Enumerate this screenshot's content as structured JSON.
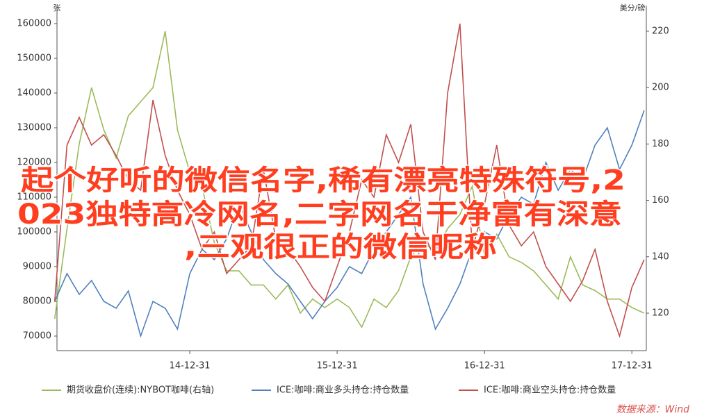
{
  "chart_data": {
    "type": "line",
    "title": [
      "起个好听的微信名字,稀有漂亮特殊符号,2",
      "023独特高冷网名,二字网名干净富有深意",
      ",三观很正的微信昵称"
    ],
    "source": "数据来源：Wind",
    "ylabel": "张",
    "y2label": "美分/磅",
    "x": [
      "14-01-31",
      "14-02-28",
      "14-03-31",
      "14-04-30",
      "14-05-31",
      "14-06-30",
      "14-07-31",
      "14-08-31",
      "14-09-30",
      "14-10-31",
      "14-11-30",
      "14-12-31",
      "15-01-31",
      "15-02-28",
      "15-03-31",
      "15-04-30",
      "15-05-31",
      "15-06-30",
      "15-07-31",
      "15-08-31",
      "15-09-30",
      "15-10-31",
      "15-11-30",
      "15-12-31",
      "16-01-31",
      "16-02-29",
      "16-03-31",
      "16-04-30",
      "16-05-31",
      "16-06-30",
      "16-07-31",
      "16-08-31",
      "16-09-30",
      "16-10-31",
      "16-11-30",
      "16-12-31",
      "17-01-31",
      "17-02-28",
      "17-03-31",
      "17-04-30",
      "17-05-31",
      "17-06-30",
      "17-07-31",
      "17-08-31",
      "17-09-30",
      "17-10-31",
      "17-11-30",
      "17-12-31",
      "18-01-31"
    ],
    "xticks": [
      "14-12-31",
      "15-12-31",
      "16-12-31",
      "17-12-31"
    ],
    "ylim": [
      65800,
      165200
    ],
    "yticks": [
      70000,
      80000,
      90000,
      100000,
      110000,
      120000,
      130000,
      140000,
      150000,
      160000
    ],
    "y2lim": [
      106.7,
      229.1
    ],
    "y2ticks": [
      120,
      140,
      160,
      180,
      200,
      220
    ],
    "series": [
      {
        "name": "期货收盘价(连续):NYBOT咖啡(右轴)",
        "color": "#9bbb59",
        "axis": "y2",
        "values": [
          118,
          150,
          180,
          200,
          185,
          175,
          190,
          195,
          200,
          220,
          185,
          170,
          165,
          145,
          135,
          135,
          130,
          130,
          125,
          130,
          120,
          125,
          122,
          125,
          122,
          115,
          125,
          122,
          128,
          140,
          145,
          142,
          150,
          155,
          165,
          140,
          148,
          140,
          138,
          135,
          130,
          125,
          140,
          130,
          128,
          125,
          125,
          122,
          120
        ]
      },
      {
        "name": "ICE:咖啡:商业多头持仓:持仓数量",
        "color": "#4f81bd",
        "values": [
          80000,
          88000,
          82000,
          86000,
          80000,
          78000,
          83000,
          70000,
          80000,
          78000,
          72000,
          88000,
          95000,
          92000,
          98000,
          108000,
          100000,
          92000,
          88000,
          85000,
          80000,
          75000,
          80000,
          84000,
          90000,
          88000,
          95000,
          100000,
          105000,
          110000,
          85000,
          72000,
          78000,
          85000,
          95000,
          100000,
          98000,
          105000,
          110000,
          108000,
          120000,
          112000,
          118000,
          115000,
          125000,
          130000,
          118000,
          125000,
          135000
        ]
      },
      {
        "name": "ICE:咖啡:商业空头持仓:持仓数量",
        "color": "#c0504d",
        "values": [
          80000,
          125000,
          133000,
          125000,
          128000,
          122000,
          115000,
          112000,
          138000,
          122000,
          112000,
          105000,
          95000,
          100000,
          88000,
          92000,
          96000,
          118000,
          98000,
          95000,
          90000,
          84000,
          80000,
          90000,
          100000,
          115000,
          110000,
          128000,
          120000,
          131000,
          100000,
          92000,
          140000,
          160000,
          95000,
          108000,
          125000,
          102000,
          96000,
          100000,
          90000,
          85000,
          80000,
          86000,
          95000,
          80000,
          70000,
          84000,
          92000
        ]
      }
    ]
  }
}
